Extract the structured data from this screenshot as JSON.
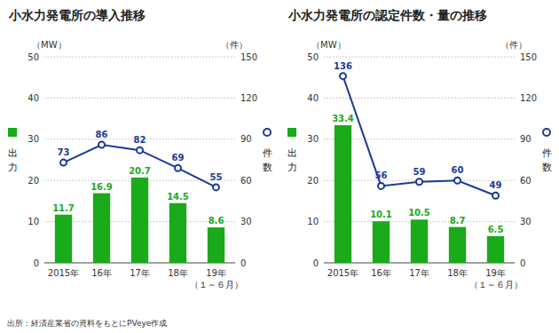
{
  "chart_data": [
    {
      "type": "bar",
      "title": "小水力発電所の導入推移",
      "categories": [
        "2015年",
        "16年",
        "17年",
        "18年",
        "19年\n（１～６月）"
      ],
      "series": [
        {
          "type": "bar",
          "color": "#1aaa1a",
          "values": [
            11.7,
            16.9,
            20.7,
            14.5,
            8.6
          ]
        },
        {
          "type": "line",
          "axis": "y2",
          "color": "#1a3a9a",
          "marker": "circle",
          "values": [
            73,
            86,
            82,
            69,
            55
          ]
        }
      ],
      "ylabel": "出\n力",
      "y_unit": "（MW）",
      "y2label": "件\n数",
      "y2_unit": "（件）",
      "ylim": [
        0,
        50
      ],
      "yticks": [
        0,
        10,
        20,
        30,
        40,
        50
      ],
      "y2lim": [
        0,
        150
      ],
      "y2ticks": [
        0,
        30,
        60,
        90,
        120,
        150
      ],
      "grid": true,
      "data_labels": true,
      "source": "出所：経済産業省の資料をもとにPVeye作成"
    },
    {
      "type": "bar",
      "title": "小水力発電所の認定件数・量の推移",
      "categories": [
        "2015年",
        "16年",
        "17年",
        "18年",
        "19年\n（１～６月）"
      ],
      "series": [
        {
          "type": "bar",
          "color": "#1aaa1a",
          "values": [
            33.4,
            10.1,
            10.5,
            8.7,
            6.5
          ]
        },
        {
          "type": "line",
          "axis": "y2",
          "color": "#1a3a9a",
          "marker": "circle",
          "values": [
            136,
            56,
            59,
            60,
            49
          ]
        }
      ],
      "ylabel": "出\n力",
      "y_unit": "（MW）",
      "y2label": "件\n数",
      "y2_unit": "（件）",
      "ylim": [
        0,
        50
      ],
      "yticks": [
        0,
        10,
        20,
        30,
        40,
        50
      ],
      "y2lim": [
        0,
        150
      ],
      "y2ticks": [
        0,
        30,
        60,
        90,
        120,
        150
      ],
      "grid": true,
      "data_labels": true
    }
  ]
}
